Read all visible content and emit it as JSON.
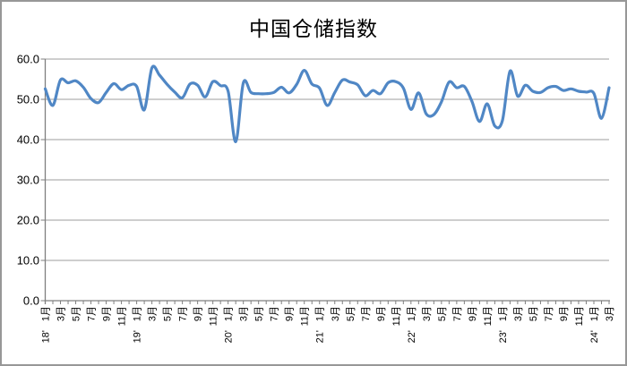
{
  "chart_data": {
    "type": "line",
    "title": "中国仓储指数",
    "legend": "none",
    "grid": "horizontal",
    "x_axis": {
      "start": "2018-01",
      "end": "2024-03",
      "tick_every_months": 1,
      "label_every_months": 2,
      "month_tick_labels": [
        "1月",
        "3月",
        "5月",
        "7月",
        "9月",
        "11月",
        "1月",
        "3月",
        "5月",
        "7月",
        "9月",
        "11月",
        "1月",
        "3月",
        "5月",
        "7月",
        "9月",
        "11月",
        "1月",
        "3月",
        "5月",
        "7月",
        "9月",
        "11月",
        "1月",
        "3月",
        "5月",
        "7月",
        "9月",
        "11月",
        "1月",
        "3月",
        "5月",
        "7月",
        "9月",
        "11月",
        "1月",
        "3月"
      ],
      "year_tick_labels": [
        "18'",
        "19'",
        "20'",
        "21'",
        "22'",
        "23'",
        "24'"
      ],
      "year_tick_indices": [
        0,
        12,
        24,
        36,
        48,
        60,
        72
      ]
    },
    "y_axis": {
      "min": 0,
      "max": 60,
      "step": 10,
      "tick_labels": [
        "0.0",
        "10.0",
        "20.0",
        "30.0",
        "40.0",
        "50.0",
        "60.0"
      ]
    },
    "series": [
      {
        "name": "中国仓储指数",
        "color": "#5087c5",
        "smooth": true,
        "values": [
          52.6,
          48.5,
          54.8,
          54.1,
          54.6,
          53.0,
          50.2,
          49.2,
          51.7,
          53.9,
          52.4,
          53.5,
          53.2,
          47.4,
          57.8,
          56.0,
          53.7,
          51.8,
          50.4,
          53.8,
          53.5,
          50.6,
          54.4,
          53.4,
          52.0,
          39.5,
          54.1,
          51.7,
          51.4,
          51.4,
          51.7,
          53.0,
          51.6,
          53.7,
          57.2,
          53.8,
          52.8,
          48.5,
          51.7,
          54.8,
          54.3,
          53.6,
          50.9,
          52.2,
          51.4,
          54.1,
          54.4,
          52.8,
          47.5,
          51.6,
          46.4,
          46.2,
          49.4,
          54.3,
          52.9,
          53.2,
          49.5,
          44.5,
          48.9,
          43.4,
          44.7,
          57.0,
          50.8,
          53.5,
          52.0,
          51.7,
          52.9,
          53.2,
          52.2,
          52.6,
          52.0,
          51.8,
          51.5,
          45.3,
          52.9
        ]
      }
    ],
    "colors": {
      "line": "#5087c5",
      "gridline": "#9e9e9e",
      "axis": "#7f7f7f",
      "text": "#000000",
      "frame_border": "#979797",
      "background": "#ffffff"
    }
  }
}
